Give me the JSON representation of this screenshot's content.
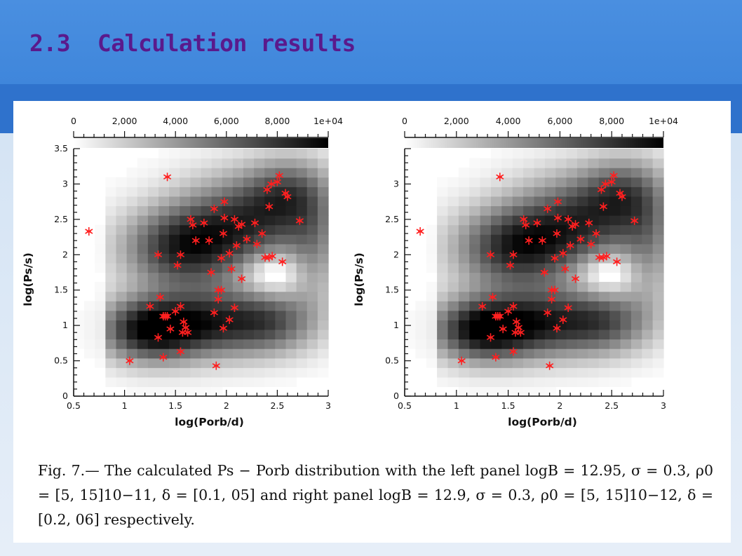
{
  "slide": {
    "title": "2.3  Calculation results",
    "caption": "Fig.  7.— The calculated Ps − Porb distribution with the left panel logB = 12.95, σ = 0.3, ρ0 = [5, 15]10−11, δ = [0.1, 05] and right panel logB = 12.9, σ = 0.3, ρ0 = [5, 15]10−12, δ = [0.2, 06] respectively."
  },
  "chart_data": [
    {
      "type": "scatter",
      "panel": "left",
      "xlabel": "log(Porb/d)",
      "ylabel": "log(Ps/s)",
      "xlim": [
        0.5,
        3
      ],
      "ylim": [
        0,
        3.5
      ],
      "xticks": [
        "0.5",
        "1",
        "1.5",
        "2",
        "2.5",
        "3"
      ],
      "yticks": [
        "0",
        "0.5",
        "1",
        "1.5",
        "2",
        "2.5",
        "3",
        "3.5"
      ],
      "colorbar": {
        "min": 0,
        "max": 10000,
        "ticks": [
          "0",
          "2,000",
          "4,000",
          "6,000",
          "8,000",
          "1e+04"
        ],
        "colors": [
          "#ffffff",
          "#000000"
        ]
      },
      "marker_color": "#ff2020",
      "points": [
        [
          0.65,
          2.33
        ],
        [
          1.42,
          3.1
        ],
        [
          1.05,
          0.5
        ],
        [
          1.25,
          1.27
        ],
        [
          1.33,
          0.83
        ],
        [
          1.35,
          1.4
        ],
        [
          1.38,
          0.55
        ],
        [
          1.38,
          1.13
        ],
        [
          1.4,
          1.13
        ],
        [
          1.42,
          1.13
        ],
        [
          1.45,
          0.95
        ],
        [
          1.5,
          1.2
        ],
        [
          1.55,
          0.63
        ],
        [
          1.55,
          1.27
        ],
        [
          1.57,
          0.9
        ],
        [
          1.58,
          1.05
        ],
        [
          1.6,
          0.97
        ],
        [
          1.62,
          0.9
        ],
        [
          1.33,
          2.0
        ],
        [
          1.52,
          1.85
        ],
        [
          1.55,
          2.0
        ],
        [
          1.65,
          2.5
        ],
        [
          1.67,
          2.42
        ],
        [
          1.7,
          2.2
        ],
        [
          1.78,
          2.45
        ],
        [
          1.83,
          2.2
        ],
        [
          1.85,
          1.75
        ],
        [
          1.88,
          2.65
        ],
        [
          1.88,
          1.18
        ],
        [
          1.9,
          0.43
        ],
        [
          1.92,
          1.37
        ],
        [
          1.92,
          1.5
        ],
        [
          1.95,
          1.5
        ],
        [
          1.95,
          1.95
        ],
        [
          1.97,
          0.96
        ],
        [
          1.97,
          2.3
        ],
        [
          1.98,
          2.52
        ],
        [
          1.98,
          2.75
        ],
        [
          2.03,
          1.08
        ],
        [
          2.03,
          2.02
        ],
        [
          2.05,
          1.8
        ],
        [
          2.08,
          1.25
        ],
        [
          2.08,
          2.5
        ],
        [
          2.1,
          2.13
        ],
        [
          2.12,
          2.4
        ],
        [
          2.15,
          2.43
        ],
        [
          2.15,
          1.66
        ],
        [
          2.2,
          2.22
        ],
        [
          2.28,
          2.45
        ],
        [
          2.3,
          2.15
        ],
        [
          2.35,
          2.3
        ],
        [
          2.38,
          1.96
        ],
        [
          2.4,
          2.92
        ],
        [
          2.42,
          1.96
        ],
        [
          2.42,
          2.68
        ],
        [
          2.44,
          3.0
        ],
        [
          2.45,
          1.98
        ],
        [
          2.5,
          3.03
        ],
        [
          2.52,
          3.12
        ],
        [
          2.55,
          1.9
        ],
        [
          2.58,
          2.87
        ],
        [
          2.6,
          2.82
        ],
        [
          2.72,
          2.48
        ]
      ]
    },
    {
      "type": "scatter",
      "panel": "right",
      "xlabel": "log(Porb/d)",
      "ylabel": "log(Ps/s)",
      "xlim": [
        0.5,
        3
      ],
      "ylim": [
        0,
        3.5
      ],
      "xticks": [
        "0.5",
        "1",
        "1.5",
        "2",
        "2.5",
        "3"
      ],
      "yticks": [
        "0",
        "0.5",
        "1",
        "1.5",
        "2",
        "2.5",
        "3"
      ],
      "colorbar": {
        "min": 0,
        "max": 10000,
        "ticks": [
          "0",
          "2,000",
          "4,000",
          "6,000",
          "8,000",
          "1e+04"
        ],
        "colors": [
          "#ffffff",
          "#000000"
        ]
      },
      "marker_color": "#ff2020",
      "points": [
        [
          0.65,
          2.33
        ],
        [
          1.42,
          3.1
        ],
        [
          1.05,
          0.5
        ],
        [
          1.25,
          1.27
        ],
        [
          1.33,
          0.83
        ],
        [
          1.35,
          1.4
        ],
        [
          1.38,
          0.55
        ],
        [
          1.38,
          1.13
        ],
        [
          1.4,
          1.13
        ],
        [
          1.42,
          1.13
        ],
        [
          1.45,
          0.95
        ],
        [
          1.5,
          1.2
        ],
        [
          1.55,
          0.63
        ],
        [
          1.55,
          1.27
        ],
        [
          1.57,
          0.9
        ],
        [
          1.58,
          1.05
        ],
        [
          1.6,
          0.97
        ],
        [
          1.62,
          0.9
        ],
        [
          1.33,
          2.0
        ],
        [
          1.52,
          1.85
        ],
        [
          1.55,
          2.0
        ],
        [
          1.65,
          2.5
        ],
        [
          1.67,
          2.42
        ],
        [
          1.7,
          2.2
        ],
        [
          1.78,
          2.45
        ],
        [
          1.83,
          2.2
        ],
        [
          1.85,
          1.75
        ],
        [
          1.88,
          2.65
        ],
        [
          1.88,
          1.18
        ],
        [
          1.9,
          0.43
        ],
        [
          1.92,
          1.37
        ],
        [
          1.92,
          1.5
        ],
        [
          1.95,
          1.5
        ],
        [
          1.95,
          1.95
        ],
        [
          1.97,
          0.96
        ],
        [
          1.97,
          2.3
        ],
        [
          1.98,
          2.52
        ],
        [
          1.98,
          2.75
        ],
        [
          2.03,
          1.08
        ],
        [
          2.03,
          2.02
        ],
        [
          2.05,
          1.8
        ],
        [
          2.08,
          1.25
        ],
        [
          2.08,
          2.5
        ],
        [
          2.1,
          2.13
        ],
        [
          2.12,
          2.4
        ],
        [
          2.15,
          2.43
        ],
        [
          2.15,
          1.66
        ],
        [
          2.2,
          2.22
        ],
        [
          2.28,
          2.45
        ],
        [
          2.3,
          2.15
        ],
        [
          2.35,
          2.3
        ],
        [
          2.38,
          1.96
        ],
        [
          2.4,
          2.92
        ],
        [
          2.42,
          1.96
        ],
        [
          2.42,
          2.68
        ],
        [
          2.44,
          3.0
        ],
        [
          2.45,
          1.98
        ],
        [
          2.5,
          3.03
        ],
        [
          2.52,
          3.12
        ],
        [
          2.55,
          1.9
        ],
        [
          2.58,
          2.87
        ],
        [
          2.6,
          2.82
        ],
        [
          2.72,
          2.48
        ]
      ]
    }
  ]
}
